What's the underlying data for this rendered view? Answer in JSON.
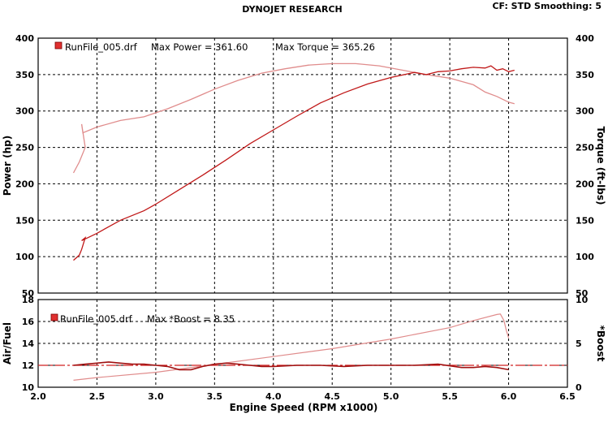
{
  "header": {
    "title": "DYNOJET RESEARCH",
    "cf_label": "CF: STD  Smoothing: 5"
  },
  "colors": {
    "power_line": "#c01818",
    "torque_line": "#e08c8c",
    "airfuel_line": "#a01010",
    "boost_line": "#e08c8c",
    "afr_reference_line": "#d02020",
    "grid": "#000000",
    "legend_swatch": "#e03030"
  },
  "chart_data": [
    {
      "type": "line",
      "legend": {
        "file": "RunFile_005.drf",
        "max_power_label": "Max Power = 361.60",
        "max_torque_label": "Max Torque = 365.26"
      },
      "ylabel_left": "Power (hp)",
      "ylabel_right": "Torque (ft-lbs)",
      "xlim": [
        2.0,
        6.5
      ],
      "ylim_left": [
        50,
        400
      ],
      "ylim_right": [
        50,
        400
      ],
      "y_ticks_left": [
        "400",
        "350",
        "300",
        "250",
        "200",
        "150",
        "100",
        "50"
      ],
      "y_ticks_right": [
        "400",
        "350",
        "300",
        "250",
        "200",
        "150",
        "100",
        "50"
      ],
      "grid": true,
      "series": [
        {
          "name": "Power",
          "axis": "left",
          "x": [
            2.3,
            2.35,
            2.37,
            2.4,
            2.37,
            2.5,
            2.7,
            2.9,
            3.0,
            3.2,
            3.4,
            3.6,
            3.8,
            4.0,
            4.2,
            4.4,
            4.6,
            4.8,
            5.0,
            5.2,
            5.3,
            5.4,
            5.5,
            5.6,
            5.7,
            5.8,
            5.85,
            5.9,
            5.95,
            6.0,
            6.05
          ],
          "y": [
            95,
            102,
            110,
            126,
            122,
            132,
            150,
            163,
            172,
            192,
            212,
            233,
            255,
            274,
            293,
            311,
            325,
            337,
            346,
            353,
            350,
            354,
            355,
            358,
            360,
            359,
            362,
            356,
            358,
            354,
            356
          ]
        },
        {
          "name": "Torque",
          "axis": "right",
          "x": [
            2.3,
            2.35,
            2.4,
            2.37,
            2.38,
            2.5,
            2.7,
            2.9,
            3.1,
            3.3,
            3.5,
            3.7,
            3.9,
            4.1,
            4.3,
            4.5,
            4.7,
            4.9,
            5.1,
            5.3,
            5.5,
            5.7,
            5.8,
            5.9,
            6.0,
            6.05
          ],
          "y": [
            215,
            230,
            250,
            282,
            270,
            278,
            287,
            292,
            303,
            316,
            330,
            342,
            352,
            358,
            363,
            365,
            365,
            362,
            356,
            350,
            345,
            336,
            326,
            320,
            312,
            310
          ]
        }
      ]
    },
    {
      "type": "line",
      "legend": {
        "file": "RunFile_005.drf",
        "max_boost_label": "Max *Boost = 8.35"
      },
      "ylabel_left": "Air/Fuel",
      "ylabel_right": "*Boost",
      "xlabel": "Engine Speed (RPM x1000)",
      "xlim": [
        2.0,
        6.5
      ],
      "ylim_left": [
        10,
        18
      ],
      "ylim_right": [
        0,
        10
      ],
      "x_ticks": [
        "2.0",
        "2.5",
        "3.0",
        "3.5",
        "4.0",
        "4.5",
        "5.0",
        "5.5",
        "6.0",
        "6.5"
      ],
      "y_ticks_left": [
        "18",
        "16",
        "14",
        "12",
        "10"
      ],
      "y_ticks_right": [
        "10",
        "5",
        "0"
      ],
      "grid": true,
      "afr_reference": 12.0,
      "series": [
        {
          "name": "Air/Fuel",
          "axis": "left",
          "x": [
            2.3,
            2.4,
            2.5,
            2.6,
            2.7,
            2.8,
            2.9,
            3.0,
            3.1,
            3.2,
            3.3,
            3.4,
            3.5,
            3.6,
            3.7,
            3.8,
            3.9,
            4.0,
            4.2,
            4.4,
            4.6,
            4.8,
            5.0,
            5.2,
            5.4,
            5.6,
            5.7,
            5.8,
            5.9,
            6.0
          ],
          "y": [
            12.0,
            12.1,
            12.2,
            12.3,
            12.2,
            12.1,
            12.1,
            12.0,
            11.9,
            11.6,
            11.6,
            11.9,
            12.1,
            12.2,
            12.1,
            12.0,
            11.9,
            11.9,
            12.0,
            12.0,
            11.9,
            12.0,
            12.0,
            12.0,
            12.1,
            11.8,
            11.8,
            11.9,
            11.8,
            11.6
          ]
        },
        {
          "name": "*Boost",
          "axis": "right",
          "x": [
            2.3,
            2.5,
            3.0,
            3.5,
            4.0,
            4.5,
            5.0,
            5.5,
            5.7,
            5.9,
            5.93,
            5.96,
            5.98,
            6.0
          ],
          "y": [
            0.8,
            1.1,
            1.7,
            2.6,
            3.5,
            4.4,
            5.5,
            6.8,
            7.6,
            8.3,
            8.35,
            7.6,
            6.5,
            5.6
          ]
        }
      ]
    }
  ]
}
